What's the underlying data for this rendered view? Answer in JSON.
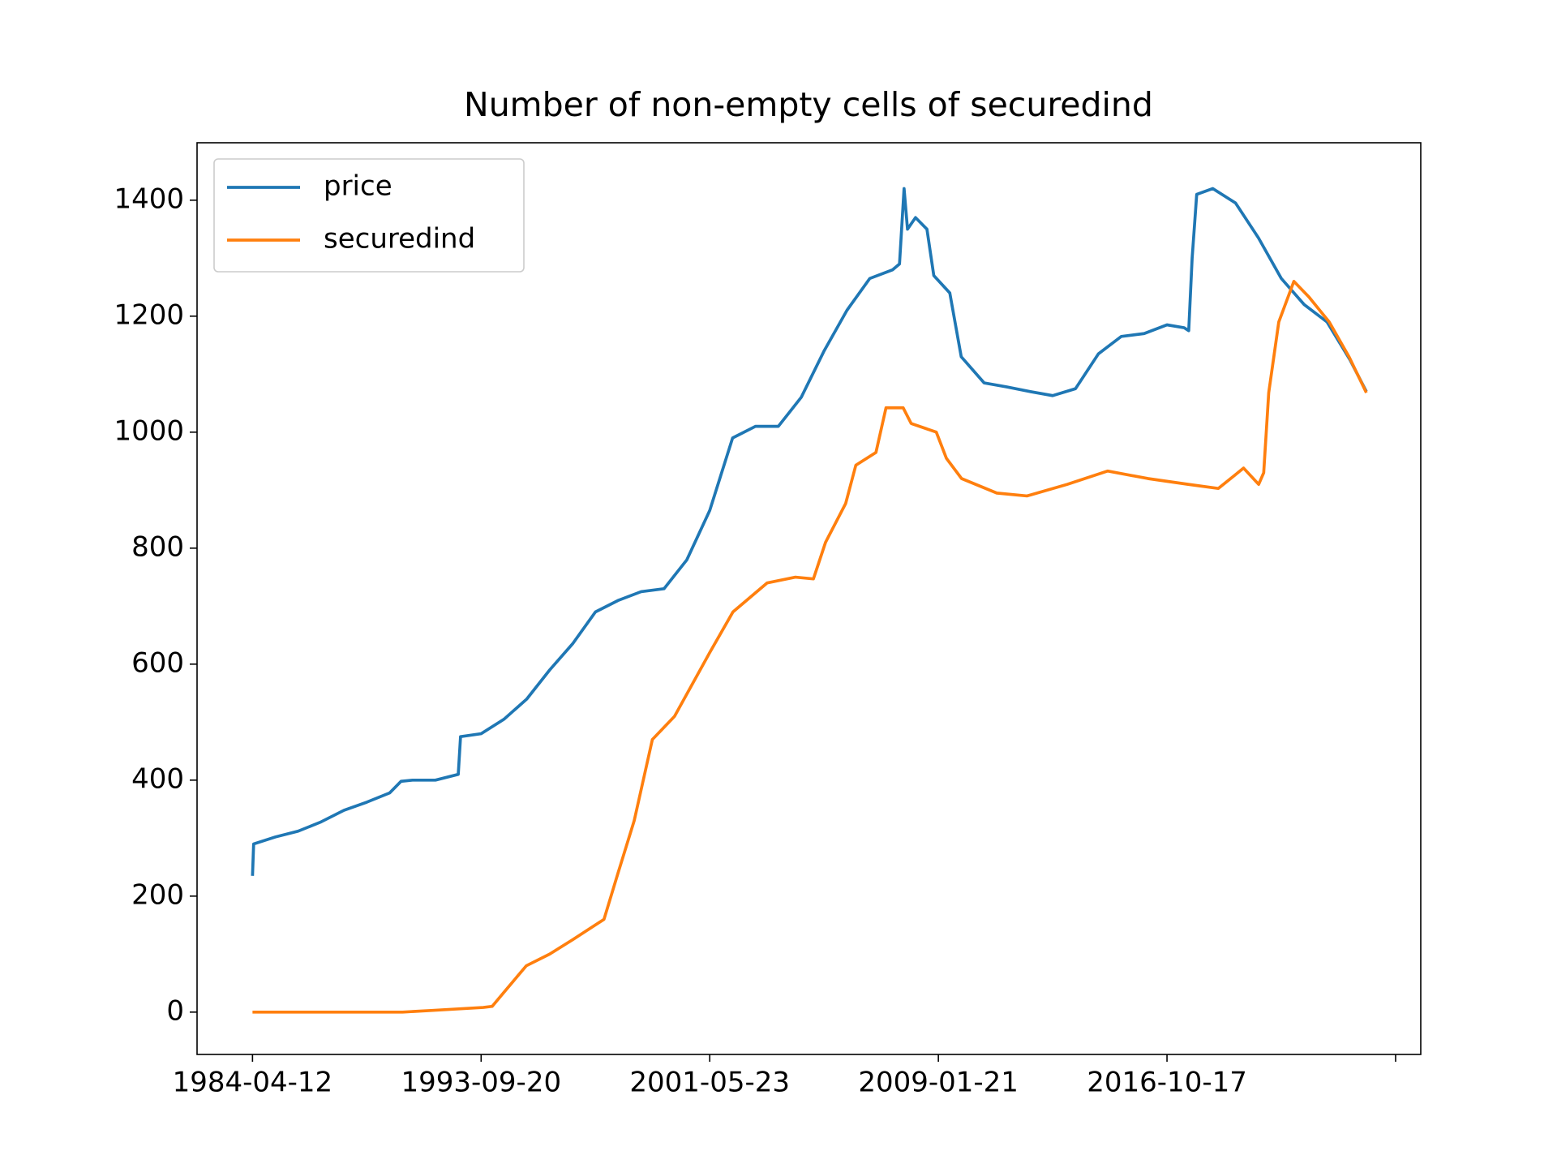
{
  "chart_data": {
    "type": "line",
    "title": "Number of non-empty cells of securedind",
    "xlim": [
      -485,
      10220
    ],
    "ylim": [
      -73,
      1499
    ],
    "xticks": [
      {
        "value": 0,
        "label": "1984-04-12"
      },
      {
        "value": 2000,
        "label": "1993-09-20"
      },
      {
        "value": 4000,
        "label": "2001-05-23"
      },
      {
        "value": 6000,
        "label": "2009-01-21"
      },
      {
        "value": 8000,
        "label": "2016-10-17"
      },
      {
        "value": 10000,
        "label": null
      }
    ],
    "yticks": [
      0,
      200,
      400,
      600,
      800,
      1000,
      1200,
      1400
    ],
    "grid": false,
    "legend": "upper left",
    "series": [
      {
        "name": "price",
        "color": "#1f77b4",
        "x": [
          0,
          10,
          200,
          400,
          600,
          800,
          1000,
          1200,
          1300,
          1400,
          1600,
          1800,
          1820,
          2000,
          2200,
          2400,
          2600,
          2800,
          3000,
          3200,
          3400,
          3600,
          3800,
          4000,
          4200,
          4400,
          4600,
          4800,
          5000,
          5200,
          5400,
          5600,
          5660,
          5700,
          5730,
          5800,
          5900,
          5960,
          6100,
          6200,
          6400,
          6600,
          6800,
          7000,
          7200,
          7400,
          7600,
          7800,
          8000,
          8150,
          8190,
          8220,
          8260,
          8400,
          8600,
          8800,
          9000,
          9200,
          9400,
          9600,
          9744
        ],
        "values": [
          235,
          290,
          302,
          312,
          328,
          348,
          362,
          378,
          398,
          400,
          400,
          410,
          475,
          480,
          505,
          540,
          590,
          635,
          690,
          710,
          725,
          730,
          780,
          865,
          990,
          1010,
          1010,
          1060,
          1140,
          1210,
          1265,
          1280,
          1290,
          1420,
          1350,
          1370,
          1350,
          1270,
          1240,
          1130,
          1085,
          1078,
          1070,
          1063,
          1075,
          1135,
          1165,
          1170,
          1185,
          1180,
          1175,
          1300,
          1410,
          1420,
          1395,
          1335,
          1265,
          1220,
          1190,
          1125,
          1070
        ]
      },
      {
        "name": "securedind",
        "color": "#ff7f0e",
        "x": [
          0,
          1000,
          1313,
          1577,
          2018,
          2097,
          2203,
          2396,
          2599,
          2802,
          3075,
          3198,
          3339,
          3498,
          3692,
          4000,
          4203,
          4502,
          4749,
          4907,
          5013,
          5189,
          5278,
          5454,
          5542,
          5692,
          5762,
          5982,
          6070,
          6203,
          6511,
          6775,
          7128,
          7480,
          7833,
          8185,
          8449,
          8670,
          8802,
          8846,
          8890,
          8978,
          9110,
          9242,
          9419,
          9595,
          9744
        ],
        "values": [
          0,
          0,
          0,
          3,
          8,
          10,
          35,
          80,
          100,
          125,
          160,
          240,
          330,
          470,
          510,
          620,
          690,
          740,
          750,
          747,
          810,
          877,
          943,
          965,
          1042,
          1042,
          1015,
          1000,
          955,
          920,
          895,
          890,
          910,
          933,
          920,
          910,
          903,
          938,
          910,
          930,
          1068,
          1190,
          1260,
          1233,
          1190,
          1129,
          1068
        ]
      }
    ]
  }
}
